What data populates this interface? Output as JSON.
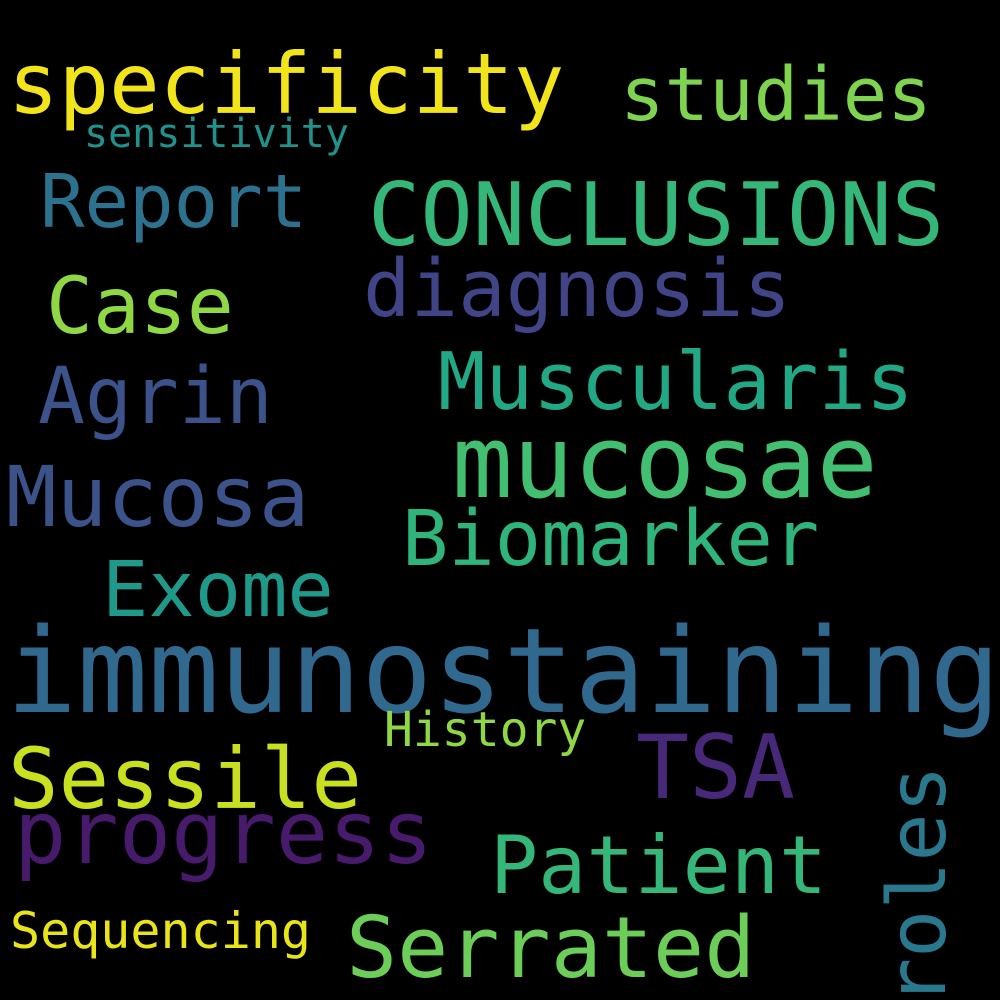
{
  "words": {
    "specificity": {
      "text": "specificity",
      "color": "#F2E41B"
    },
    "studies": {
      "text": "studies",
      "color": "#7ED34F"
    },
    "sensitivity": {
      "text": "sensitivity",
      "color": "#21918C"
    },
    "report": {
      "text": "Report",
      "color": "#2C728E"
    },
    "conclusions": {
      "text": "CONCLUSIONS",
      "color": "#35B779"
    },
    "case": {
      "text": "Case",
      "color": "#8FD744"
    },
    "diagnosis": {
      "text": "diagnosis",
      "color": "#414487"
    },
    "agrin": {
      "text": "Agrin",
      "color": "#3B528B"
    },
    "muscularis": {
      "text": "Muscularis",
      "color": "#22A884"
    },
    "mucosae": {
      "text": "mucosae",
      "color": "#43BF71"
    },
    "mucosa": {
      "text": "Mucosa",
      "color": "#3B528B"
    },
    "biomarker": {
      "text": "Biomarker",
      "color": "#2FB47C"
    },
    "exome": {
      "text": "Exome",
      "color": "#1F9A8A"
    },
    "immunostaining": {
      "text": "immunostaining",
      "color": "#31688E"
    },
    "history": {
      "text": "History",
      "color": "#8FD744"
    },
    "tsa": {
      "text": "TSA",
      "color": "#482878"
    },
    "sessile": {
      "text": "Sessile",
      "color": "#C8E020"
    },
    "roles": {
      "text": "roles",
      "color": "#2A788E"
    },
    "progress": {
      "text": "progress",
      "color": "#481A6C"
    },
    "patient": {
      "text": "Patient",
      "color": "#35B779"
    },
    "sequencing": {
      "text": "Sequencing",
      "color": "#E8E419"
    },
    "serrated": {
      "text": "Serrated",
      "color": "#6CCE59"
    }
  }
}
